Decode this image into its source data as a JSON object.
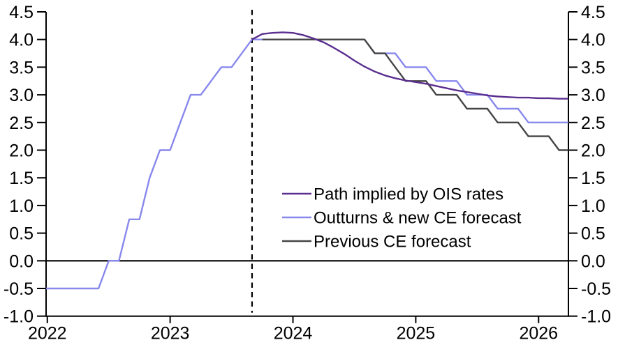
{
  "chart_data": {
    "type": "line",
    "title": "",
    "xlabel": "",
    "ylabel": "",
    "grid": false,
    "dual_y_axis": true,
    "zero_line": true,
    "forecast_divider_x": 2023.667,
    "x_range": [
      2021.99,
      2026.243
    ],
    "y_range": [
      -1.0,
      4.5
    ],
    "x_ticks": [
      2022,
      2023,
      2024,
      2025,
      2026
    ],
    "y_ticks": [
      -1.0,
      -0.5,
      0.0,
      0.5,
      1.0,
      1.5,
      2.0,
      2.5,
      3.0,
      3.5,
      4.0,
      4.5
    ],
    "legend_position": "center-right",
    "axis_color": "#000000",
    "series": [
      {
        "name": "Path implied by OIS rates",
        "color": "#5b2f8f",
        "z": 3,
        "points": [
          [
            2023.667,
            4.0
          ],
          [
            2023.75,
            4.1
          ],
          [
            2023.833,
            4.12
          ],
          [
            2023.917,
            4.13
          ],
          [
            2024.0,
            4.12
          ],
          [
            2024.083,
            4.08
          ],
          [
            2024.167,
            4.02
          ],
          [
            2024.25,
            3.95
          ],
          [
            2024.333,
            3.85
          ],
          [
            2024.417,
            3.74
          ],
          [
            2024.5,
            3.62
          ],
          [
            2024.583,
            3.51
          ],
          [
            2024.667,
            3.42
          ],
          [
            2024.75,
            3.35
          ],
          [
            2024.833,
            3.3
          ],
          [
            2024.917,
            3.26
          ],
          [
            2025.0,
            3.23
          ],
          [
            2025.083,
            3.2
          ],
          [
            2025.167,
            3.16
          ],
          [
            2025.25,
            3.12
          ],
          [
            2025.333,
            3.08
          ],
          [
            2025.417,
            3.05
          ],
          [
            2025.5,
            3.02
          ],
          [
            2025.583,
            2.99
          ],
          [
            2025.667,
            2.97
          ],
          [
            2025.75,
            2.96
          ],
          [
            2025.833,
            2.95
          ],
          [
            2025.917,
            2.95
          ],
          [
            2026.0,
            2.94
          ],
          [
            2026.083,
            2.94
          ],
          [
            2026.167,
            2.93
          ],
          [
            2026.243,
            2.93
          ]
        ]
      },
      {
        "name": "Outturns & new CE forecast",
        "color": "#8888ee",
        "z": 1,
        "points": [
          [
            2021.99,
            -0.5
          ],
          [
            2022.417,
            -0.5
          ],
          [
            2022.5,
            0.0
          ],
          [
            2022.583,
            0.0
          ],
          [
            2022.667,
            0.75
          ],
          [
            2022.75,
            0.75
          ],
          [
            2022.833,
            1.5
          ],
          [
            2022.917,
            2.0
          ],
          [
            2023.0,
            2.0
          ],
          [
            2023.083,
            2.5
          ],
          [
            2023.167,
            3.0
          ],
          [
            2023.25,
            3.0
          ],
          [
            2023.333,
            3.25
          ],
          [
            2023.417,
            3.5
          ],
          [
            2023.5,
            3.5
          ],
          [
            2023.583,
            3.75
          ],
          [
            2023.667,
            4.0
          ],
          [
            2024.583,
            4.0
          ],
          [
            2024.667,
            3.75
          ],
          [
            2024.833,
            3.75
          ],
          [
            2024.917,
            3.5
          ],
          [
            2025.083,
            3.5
          ],
          [
            2025.167,
            3.25
          ],
          [
            2025.333,
            3.25
          ],
          [
            2025.417,
            3.0
          ],
          [
            2025.583,
            3.0
          ],
          [
            2025.667,
            2.75
          ],
          [
            2025.833,
            2.75
          ],
          [
            2025.917,
            2.5
          ],
          [
            2026.243,
            2.5
          ]
        ]
      },
      {
        "name": "Previous CE forecast",
        "color": "#454545",
        "z": 2,
        "points": [
          [
            2023.75,
            4.0
          ],
          [
            2024.583,
            4.0
          ],
          [
            2024.667,
            3.75
          ],
          [
            2024.75,
            3.75
          ],
          [
            2024.833,
            3.5
          ],
          [
            2024.917,
            3.25
          ],
          [
            2025.083,
            3.25
          ],
          [
            2025.167,
            3.0
          ],
          [
            2025.333,
            3.0
          ],
          [
            2025.417,
            2.75
          ],
          [
            2025.583,
            2.75
          ],
          [
            2025.667,
            2.5
          ],
          [
            2025.833,
            2.5
          ],
          [
            2025.917,
            2.25
          ],
          [
            2026.083,
            2.25
          ],
          [
            2026.167,
            2.0
          ],
          [
            2026.243,
            2.0
          ]
        ]
      }
    ]
  }
}
